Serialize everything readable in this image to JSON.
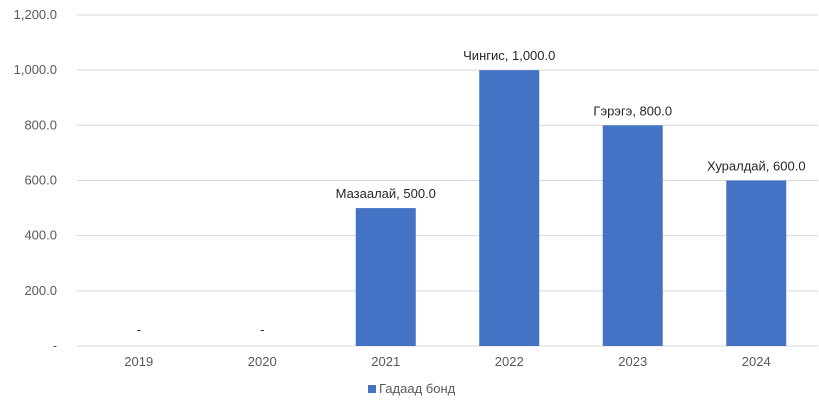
{
  "chart_data": {
    "type": "bar",
    "categories": [
      "2019",
      "2020",
      "2021",
      "2022",
      "2023",
      "2024"
    ],
    "series": [
      {
        "name": "Гадаад бонд",
        "values": [
          0,
          0,
          500,
          1000,
          800,
          600
        ],
        "color": "#4472c4"
      }
    ],
    "data_labels": [
      "-",
      "-",
      "Мазаалай,  500.0",
      "Чингис, 1,000.0",
      "Гэрэгэ, 800.0",
      "Хуралдай, 600.0"
    ],
    "y_ticks": [
      "-",
      "200.0",
      "400.0",
      "600.0",
      "800.0",
      "1,000.0",
      "1,200.0"
    ],
    "ylim": [
      0,
      1200
    ],
    "grid": true,
    "legend_position": "bottom",
    "title": "",
    "xlabel": "",
    "ylabel": ""
  }
}
